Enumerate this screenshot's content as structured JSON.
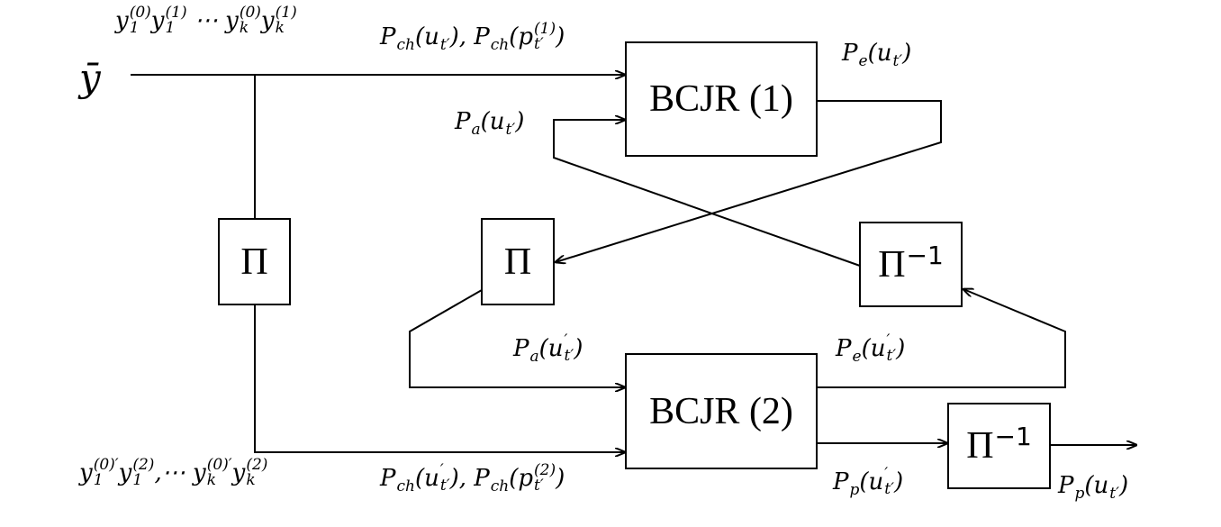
{
  "symbol": [
    {
      "base": "ȳ"
    }
  ],
  "boxes": {
    "bcjr1": [
      {
        "base": "BCJR (1)"
      }
    ],
    "bcjr2": [
      {
        "base": "BCJR (2)"
      }
    ],
    "pi_left": [
      {
        "base": "Π"
      }
    ],
    "pi_mid": [
      {
        "base": "Π"
      }
    ],
    "pi_inv_right": [
      {
        "base": "Π",
        "sup": "−1"
      }
    ],
    "pi_inv_bottom": [
      {
        "base": "Π",
        "sup": "−1"
      }
    ]
  },
  "labels": {
    "top_input": [
      {
        "base": "y",
        "sub": "1",
        "sup": "(0)"
      },
      {
        "base": "y",
        "sub": "1",
        "sup": "(1)"
      },
      {
        "base": " ⋯ "
      },
      {
        "base": "y",
        "sub": "k",
        "sup": "(0)"
      },
      {
        "base": "y",
        "sub": "k",
        "sup": "(1)"
      }
    ],
    "top_channel": [
      {
        "base": "P",
        "sub": "ch"
      },
      {
        "base": "(u",
        "sub": "t′"
      },
      {
        "base": "), "
      },
      {
        "base": "P",
        "sub": "ch"
      },
      {
        "base": "(p",
        "sub": "t′",
        "sup": "(1)"
      },
      {
        "base": ")"
      }
    ],
    "pe1": [
      {
        "base": "P",
        "sub": "e"
      },
      {
        "base": "(u",
        "sub": "t′"
      },
      {
        "base": ")"
      }
    ],
    "pa1": [
      {
        "base": "P",
        "sub": "a"
      },
      {
        "base": "(u",
        "sub": "t′"
      },
      {
        "base": ")"
      }
    ],
    "pa2": [
      {
        "base": "P",
        "sub": "a"
      },
      {
        "base": "(u",
        "sub": "t′",
        "sup": "′"
      },
      {
        "base": ")"
      }
    ],
    "pe2": [
      {
        "base": "P",
        "sub": "e"
      },
      {
        "base": "(u",
        "sub": "t′",
        "sup": "′"
      },
      {
        "base": ")"
      }
    ],
    "bottom_input": [
      {
        "base": "y",
        "sub": "1",
        "sup": "(0)′"
      },
      {
        "base": "y",
        "sub": "1",
        "sup": "(2)"
      },
      {
        "base": ",⋯ "
      },
      {
        "base": "y",
        "sub": "k",
        "sup": "(0)′"
      },
      {
        "base": "y",
        "sub": "k",
        "sup": "(2)"
      }
    ],
    "bottom_channel": [
      {
        "base": "P",
        "sub": "ch"
      },
      {
        "base": "(u",
        "sub": "t′",
        "sup": "′"
      },
      {
        "base": "), "
      },
      {
        "base": "P",
        "sub": "ch"
      },
      {
        "base": "(p",
        "sub": "t′",
        "sup": "(2)"
      },
      {
        "base": ")"
      }
    ],
    "pp2": [
      {
        "base": "P",
        "sub": "p"
      },
      {
        "base": "(u",
        "sub": "t′",
        "sup": "′"
      },
      {
        "base": ")"
      }
    ],
    "pp_out": [
      {
        "base": "P",
        "sub": "p"
      },
      {
        "base": "(u",
        "sub": "t′"
      },
      {
        "base": ")"
      }
    ]
  }
}
